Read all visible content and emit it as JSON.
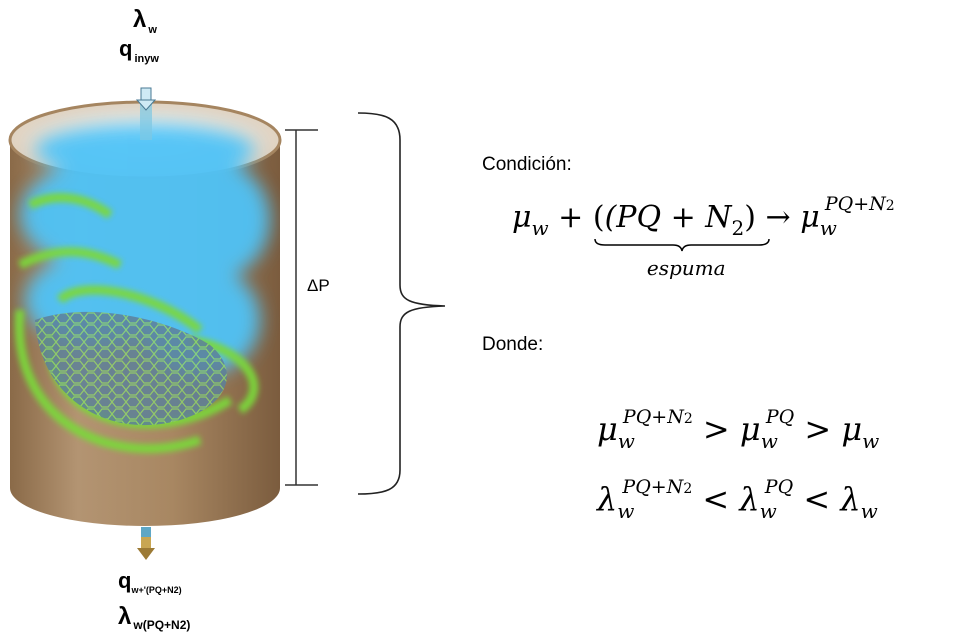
{
  "inlet": {
    "lambda_label": "λ",
    "lambda_sub": "w",
    "q_label": "q",
    "q_sub": "inyw"
  },
  "outlet": {
    "q_label": "q",
    "q_sub": "w+'(PQ+N2)",
    "lambda_label": "λ",
    "lambda_sub": "w(PQ+N2)"
  },
  "pressure_label": "ΔP",
  "condicion": {
    "heading": "Condición:",
    "mu": "μ",
    "w": "w",
    "plus": "+",
    "group": "(PQ + N",
    "group_sub": "2",
    "group_close": ")",
    "underbrace_label": "espuma",
    "arrow": "→",
    "result_sup": "PQ+N",
    "result_sup_sub": "2"
  },
  "donde": {
    "heading": "Donde:",
    "line1": {
      "sym": "μ",
      "w": "w",
      "sup_a": "PQ+N",
      "sup_a_sub": "2",
      "op1": ">",
      "sup_b": "PQ",
      "op2": ">"
    },
    "line2": {
      "sym": "λ",
      "w": "w",
      "sup_a": "PQ+N",
      "sup_a_sub": "2",
      "op1": "<",
      "sup_b": "PQ",
      "op2": "<"
    }
  },
  "colors": {
    "cylinder_body": "#a58560",
    "water_blue": "#4fc3f7",
    "foam_green": "#7cd83a",
    "foam_cells": "#5a7f9a",
    "inlet_arrow": "#7ec8e3",
    "outlet_arrow": "#9c7a35"
  }
}
